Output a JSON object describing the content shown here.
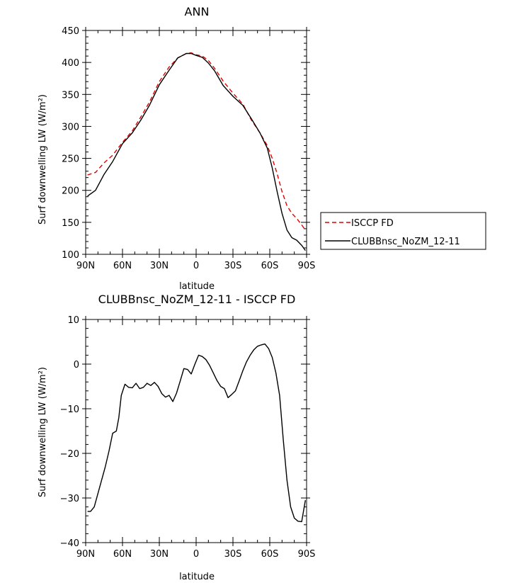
{
  "chart_data": [
    {
      "type": "line",
      "title": "ANN",
      "xlabel": "latitude",
      "ylabel": "Surf downwelling LW (W/m²)",
      "xlim": [
        90,
        -90
      ],
      "ylim": [
        100,
        450
      ],
      "x_ticks": [
        90,
        60,
        30,
        0,
        -30,
        -60,
        -90
      ],
      "x_tick_labels": [
        "90N",
        "60N",
        "30N",
        "0",
        "30S",
        "60S",
        "90S"
      ],
      "y_ticks": [
        100,
        150,
        200,
        250,
        300,
        350,
        400,
        450
      ],
      "y_tick_labels": [
        "100",
        "150",
        "200",
        "250",
        "300",
        "350",
        "400",
        "450"
      ],
      "legend": "right",
      "series": [
        {
          "name": "ISCCP FD",
          "color": "#e00000",
          "dash": "dashed",
          "x": [
            88.5,
            82,
            75,
            68,
            60,
            52,
            45,
            38,
            30,
            22,
            15,
            8,
            4,
            0,
            -5,
            -10,
            -15,
            -22,
            -30,
            -38,
            -45,
            -52,
            -58,
            -62,
            -66,
            -70,
            -74,
            -78,
            -82,
            -86,
            -89
          ],
          "y": [
            224,
            228,
            243,
            255,
            275,
            293,
            315,
            338,
            370,
            393,
            407,
            414,
            415,
            412,
            410,
            403,
            391,
            371,
            352,
            335,
            310,
            290,
            270,
            250,
            226,
            198,
            176,
            164,
            156,
            146,
            138
          ]
        },
        {
          "name": "CLUBBnsc_NoZM_12-11",
          "color": "#000000",
          "dash": "solid",
          "x": [
            88.5,
            82,
            75,
            68,
            60,
            52,
            45,
            38,
            30,
            22,
            15,
            8,
            4,
            0,
            -5,
            -10,
            -15,
            -22,
            -30,
            -38,
            -45,
            -52,
            -58,
            -62,
            -66,
            -70,
            -74,
            -78,
            -82,
            -86,
            -89
          ],
          "y": [
            191,
            200,
            225,
            245,
            273,
            290,
            310,
            333,
            365,
            388,
            407,
            414,
            414,
            411,
            408,
            399,
            387,
            364,
            347,
            333,
            312,
            290,
            266,
            235,
            198,
            164,
            138,
            126,
            122,
            114,
            106
          ]
        }
      ]
    },
    {
      "type": "line",
      "title": "CLUBBnsc_NoZM_12-11 - ISCCP FD",
      "xlabel": "latitude",
      "ylabel": "Surf downwelling LW (W/m²)",
      "xlim": [
        90,
        -90
      ],
      "ylim": [
        -40,
        10
      ],
      "x_ticks": [
        90,
        60,
        30,
        0,
        -30,
        -60,
        -90
      ],
      "x_tick_labels": [
        "90N",
        "60N",
        "30N",
        "0",
        "30S",
        "60S",
        "90S"
      ],
      "y_ticks": [
        -40,
        -30,
        -20,
        -10,
        0,
        10
      ],
      "y_tick_labels": [
        "−40",
        "−30",
        "−20",
        "−10",
        "0",
        "10"
      ],
      "series": [
        {
          "color": "#000000",
          "dash": "solid",
          "x": [
            88.5,
            86,
            83,
            80,
            77,
            74,
            71,
            68,
            65,
            63,
            61,
            58,
            55,
            52,
            49,
            46,
            43,
            40,
            37,
            34,
            31,
            28,
            25,
            22,
            19,
            16,
            13,
            10,
            7,
            4,
            1,
            -2,
            -5,
            -8,
            -11,
            -14,
            -17,
            -20,
            -23,
            -26,
            -29,
            -32,
            -35,
            -38,
            -41,
            -44,
            -47,
            -50,
            -53,
            -56,
            -59,
            -62,
            -65,
            -68,
            -71,
            -74,
            -77,
            -80,
            -83,
            -86,
            -89
          ],
          "y": [
            -33,
            -33,
            -32,
            -29,
            -26,
            -23,
            -19.5,
            -15.5,
            -15,
            -12,
            -7,
            -4.5,
            -5.2,
            -5.3,
            -4.3,
            -5.5,
            -5.2,
            -4.3,
            -4.8,
            -4.1,
            -5,
            -6.6,
            -7.4,
            -7,
            -8.4,
            -6.5,
            -3.8,
            -1,
            -1.2,
            -2.2,
            0,
            2,
            1.7,
            1,
            -0.3,
            -2,
            -3.7,
            -5,
            -5.5,
            -7.5,
            -6.8,
            -6,
            -3.8,
            -1.5,
            0.5,
            2,
            3.2,
            4,
            4.3,
            4.5,
            3.5,
            1.5,
            -2,
            -7,
            -17,
            -26,
            -32,
            -34.5,
            -35.2,
            -35.3,
            -30.5
          ]
        }
      ]
    }
  ]
}
